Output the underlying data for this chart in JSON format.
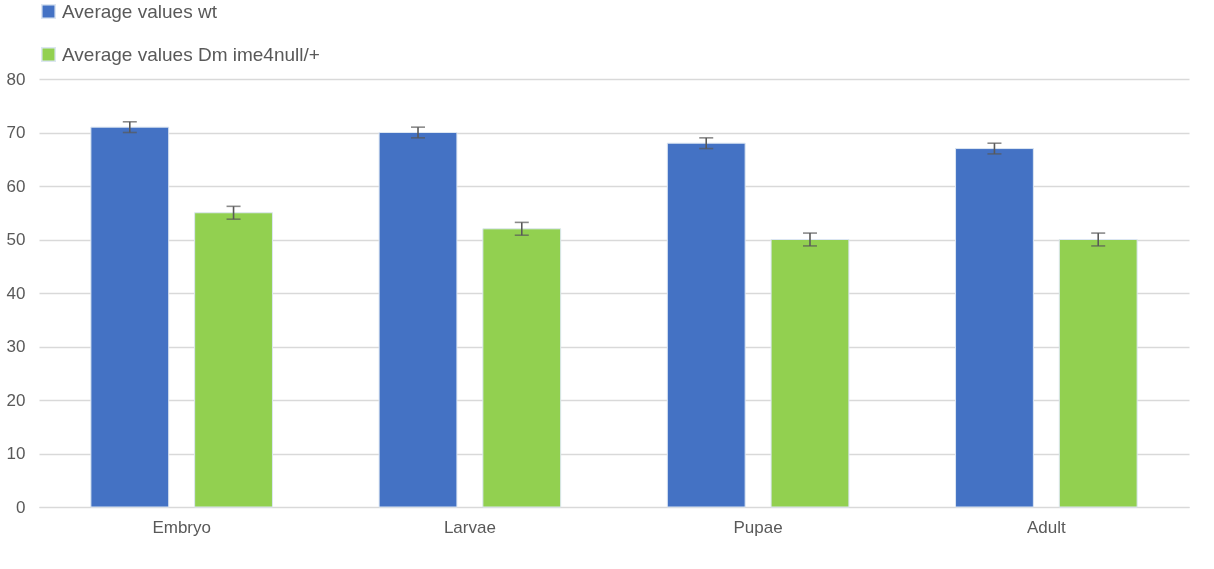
{
  "chart_data": {
    "type": "bar",
    "categories": [
      "Embryo",
      "Larvae",
      "Pupae",
      "Adult"
    ],
    "series": [
      {
        "name": "Average values wt",
        "color": "#4472c4",
        "values": [
          71,
          70,
          68,
          67
        ],
        "errors": [
          1,
          1,
          1,
          1
        ]
      },
      {
        "name": "Average values Dm ime4null/+",
        "color": "#92d050",
        "values": [
          55,
          52,
          50,
          50
        ],
        "errors": [
          1.2,
          1.2,
          1.2,
          1.2
        ]
      }
    ],
    "ylim": [
      0,
      80
    ],
    "yticks": [
      0,
      10,
      20,
      30,
      40,
      50,
      60,
      70,
      80
    ],
    "grid": "y",
    "legend": "top"
  }
}
